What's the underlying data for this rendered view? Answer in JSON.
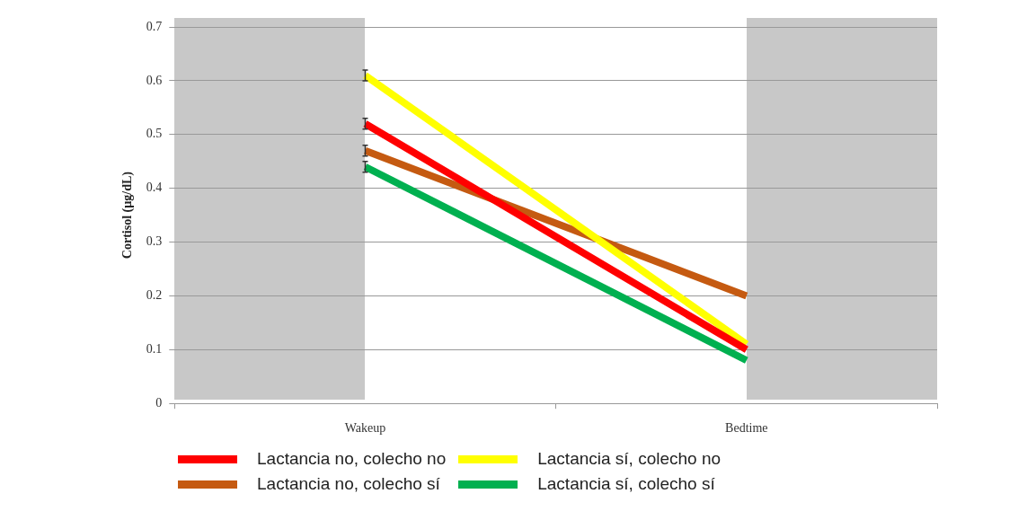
{
  "chart_data": {
    "type": "line",
    "ylabel": "Cortisol (µg/dL)",
    "categories": [
      "Wakeup",
      "Bedtime"
    ],
    "ylim": [
      0,
      0.7
    ],
    "yticks": [
      0,
      0.1,
      0.2,
      0.3,
      0.4,
      0.5,
      0.6,
      0.7
    ],
    "series": [
      {
        "name": "Lactancia no, colecho no",
        "color": "#ff0000",
        "values": [
          0.52,
          0.1
        ],
        "errors": [
          0.01,
          null
        ]
      },
      {
        "name": "Lactancia sí, colecho no",
        "color": "#ffff00",
        "values": [
          0.61,
          0.11
        ],
        "errors": [
          0.01,
          null
        ]
      },
      {
        "name": "Lactancia no, colecho sí",
        "color": "#c55a11",
        "values": [
          0.47,
          0.2
        ],
        "errors": [
          0.01,
          null
        ]
      },
      {
        "name": "Lactancia sí, colecho sí",
        "color": "#00b050",
        "values": [
          0.44,
          0.08
        ],
        "errors": [
          0.01,
          null
        ]
      }
    ],
    "grid": "y",
    "legend": "bottom",
    "marker": "none",
    "line_style": "solid"
  }
}
